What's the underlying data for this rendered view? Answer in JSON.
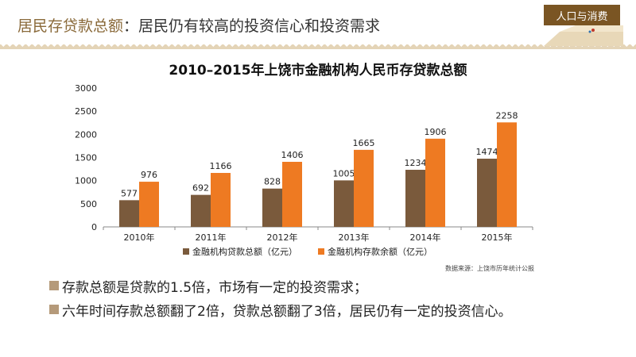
{
  "header": {
    "title_prefix": "居民存贷款总额",
    "title_rest": "：居民仍有较高的投资信心和投资需求",
    "badge": "人口与消费"
  },
  "colors": {
    "loan": "#7a5a3c",
    "deposit": "#ee7a22",
    "accent": "#7a5523"
  },
  "chart_data": {
    "type": "bar",
    "title": "2010–2015年上饶市金融机构人民币存贷款总额",
    "categories": [
      "2010年",
      "2011年",
      "2012年",
      "2013年",
      "2014年",
      "2015年"
    ],
    "series": [
      {
        "name": "金融机构贷款总额（亿元）",
        "values": [
          577,
          692,
          828,
          1005,
          1234,
          1474
        ]
      },
      {
        "name": "金融机构存款余额（亿元）",
        "values": [
          976,
          1166,
          1406,
          1665,
          1906,
          2258
        ]
      }
    ],
    "yticks": [
      "0",
      "500",
      "1000",
      "1500",
      "2000",
      "2500",
      "3000"
    ],
    "ylim": [
      0,
      3000
    ],
    "legend": "bottom",
    "grid": false
  },
  "source": "数据来源：上饶市历年统计公报",
  "bullets": [
    "存款总额是贷款的1.5倍，市场有一定的投资需求；",
    "六年时间存款总额翻了2倍，贷款总额翻了3倍，居民仍有一定的投资信心。"
  ]
}
